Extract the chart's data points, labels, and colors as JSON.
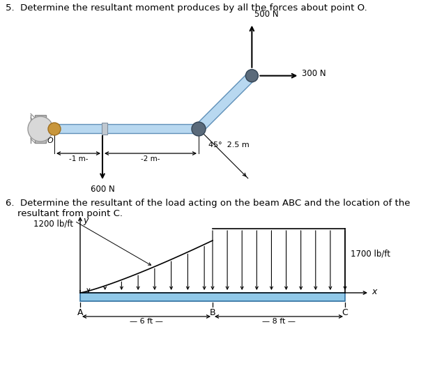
{
  "title5": "5.  Determine the resultant moment produces by all the forces about point O.",
  "title6_line1": "6.  Determine the resultant of the load acting on the beam ABC and the location of the",
  "title6_line2": "    resultant from point C.",
  "bg_color": "#ffffff",
  "text_color": "#000000",
  "bar_color": "#b8d8f0",
  "bar_edge": "#6090b8",
  "joint_dark": "#5a6a7a",
  "wall_color": "#b0b0b0",
  "wall_hatch": "#606060",
  "bronze_color": "#c8963c",
  "beam_color": "#90c8e8",
  "beam_edge": "#3070a0"
}
